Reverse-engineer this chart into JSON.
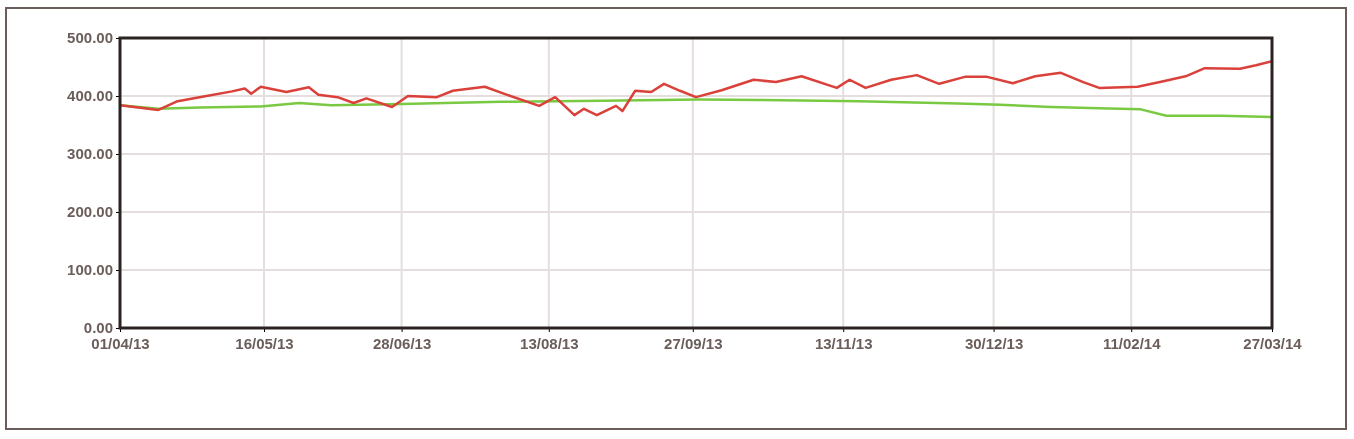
{
  "chart_data": {
    "type": "line",
    "xlim": [
      "2013-04-01",
      "2014-03-27"
    ],
    "xticks": [
      {
        "value": "2013-04-01",
        "label": "01/04/13"
      },
      {
        "value": "2013-05-16",
        "label": "16/05/13"
      },
      {
        "value": "2013-06-28",
        "label": "28/06/13"
      },
      {
        "value": "2013-08-13",
        "label": "13/08/13"
      },
      {
        "value": "2013-09-27",
        "label": "27/09/13"
      },
      {
        "value": "2013-11-13",
        "label": "13/11/13"
      },
      {
        "value": "2013-12-30",
        "label": "30/12/13"
      },
      {
        "value": "2014-02-11",
        "label": "11/02/14"
      },
      {
        "value": "2014-03-27",
        "label": "27/03/14"
      }
    ],
    "ylim": [
      0,
      500
    ],
    "yticks": [
      {
        "value": 0,
        "label": "0.00"
      },
      {
        "value": 100,
        "label": "100.00"
      },
      {
        "value": 200,
        "label": "200.00"
      },
      {
        "value": 300,
        "label": "300.00"
      },
      {
        "value": 400,
        "label": "400.00"
      },
      {
        "value": 500,
        "label": "500.00"
      }
    ],
    "grid": true,
    "marker": "none",
    "line_style": "solid",
    "series": [
      {
        "color": "#7ac943",
        "x": [
          "2013-04-01",
          "2013-04-13",
          "2013-04-26",
          "2013-05-15",
          "2013-05-27",
          "2013-06-06",
          "2013-06-28",
          "2013-07-29",
          "2013-08-30",
          "2013-09-29",
          "2013-10-18",
          "2013-11-18",
          "2013-12-19",
          "2014-01-01",
          "2014-01-17",
          "2014-02-01",
          "2014-02-14",
          "2014-02-22",
          "2014-03-11",
          "2014-03-27"
        ],
        "values": [
          384,
          378,
          380,
          382,
          388,
          384,
          386,
          390,
          392,
          394,
          393,
          391,
          387,
          385,
          381,
          379,
          377,
          366,
          366,
          364
        ]
      },
      {
        "color": "#d9413a",
        "x": [
          "2013-04-01",
          "2013-04-13",
          "2013-04-19",
          "2013-04-28",
          "2013-05-06",
          "2013-05-10",
          "2013-05-12",
          "2013-05-15",
          "2013-05-23",
          "2013-05-30",
          "2013-06-02",
          "2013-06-08",
          "2013-06-13",
          "2013-06-17",
          "2013-06-25",
          "2013-06-30",
          "2013-07-09",
          "2013-07-14",
          "2013-07-24",
          "2013-07-31",
          "2013-08-10",
          "2013-08-15",
          "2013-08-21",
          "2013-08-24",
          "2013-08-28",
          "2013-09-03",
          "2013-09-05",
          "2013-09-09",
          "2013-09-14",
          "2013-09-18",
          "2013-09-23",
          "2013-09-28",
          "2013-10-06",
          "2013-10-16",
          "2013-10-23",
          "2013-10-31",
          "2013-11-11",
          "2013-11-15",
          "2013-11-20",
          "2013-11-28",
          "2013-12-06",
          "2013-12-13",
          "2013-12-21",
          "2013-12-28",
          "2014-01-05",
          "2014-01-12",
          "2014-01-20",
          "2014-01-27",
          "2014-02-01",
          "2014-02-13",
          "2014-02-20",
          "2014-02-28",
          "2014-03-06",
          "2014-03-17",
          "2014-03-22",
          "2014-03-27"
        ],
        "values": [
          384,
          376,
          391,
          400,
          408,
          413,
          404,
          416,
          407,
          415,
          402,
          398,
          388,
          396,
          381,
          400,
          398,
          409,
          416,
          402,
          383,
          398,
          367,
          378,
          367,
          383,
          374,
          409,
          407,
          421,
          409,
          398,
          410,
          428,
          424,
          434,
          414,
          428,
          414,
          428,
          436,
          421,
          433,
          433,
          422,
          434,
          440,
          424,
          414,
          416,
          424,
          434,
          448,
          447,
          453,
          460
        ]
      }
    ]
  }
}
